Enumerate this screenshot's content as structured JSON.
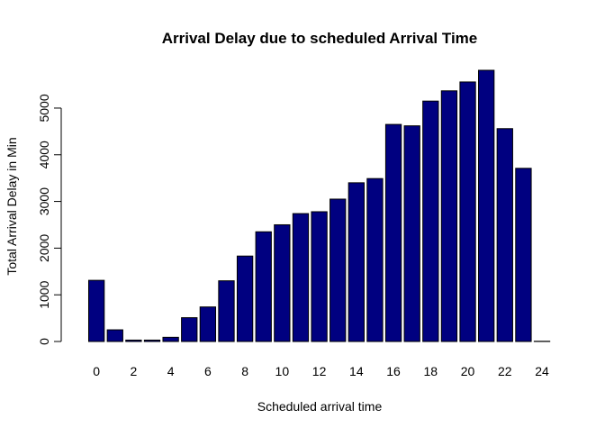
{
  "chart_data": {
    "type": "bar",
    "title": "Arrival Delay due to scheduled Arrival Time",
    "xlabel": "Scheduled arrival time",
    "ylabel": "Total Arrival Delay in Min",
    "categories": [
      "0",
      "1",
      "2",
      "3",
      "4",
      "5",
      "6",
      "7",
      "8",
      "9",
      "10",
      "11",
      "12",
      "13",
      "14",
      "15",
      "16",
      "17",
      "18",
      "19",
      "20",
      "21",
      "22",
      "23",
      "24"
    ],
    "values": [
      1310,
      250,
      30,
      30,
      90,
      510,
      740,
      1300,
      1830,
      2350,
      2500,
      2740,
      2780,
      3050,
      3400,
      3490,
      4650,
      4620,
      5150,
      5370,
      5560,
      5810,
      4560,
      3710,
      5
    ],
    "x_tick_labels": [
      "0",
      "2",
      "4",
      "6",
      "8",
      "10",
      "12",
      "14",
      "16",
      "18",
      "20",
      "22",
      "24"
    ],
    "x_tick_categories": [
      0,
      2,
      4,
      6,
      8,
      10,
      12,
      14,
      16,
      18,
      20,
      22,
      24
    ],
    "y_ticks": [
      0,
      1000,
      2000,
      3000,
      4000,
      5000
    ],
    "ylim": [
      0,
      5810
    ],
    "grid": false,
    "colors": {
      "bar_fill": "#000080",
      "bar_stroke": "#000000"
    }
  }
}
